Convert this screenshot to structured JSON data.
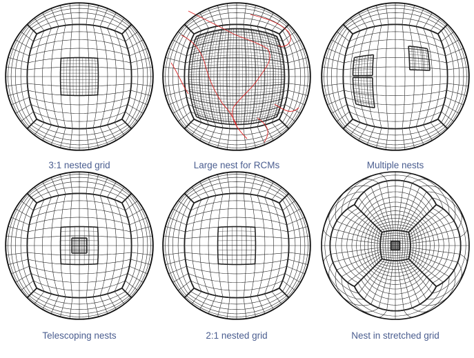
{
  "panels": [
    {
      "caption": "3:1 nested grid"
    },
    {
      "caption": "Large nest for RCMs"
    },
    {
      "caption": "Multiple nests"
    },
    {
      "caption": "Telescoping nests"
    },
    {
      "caption": "2:1 nested grid"
    },
    {
      "caption": "Nest in stretched grid"
    }
  ]
}
